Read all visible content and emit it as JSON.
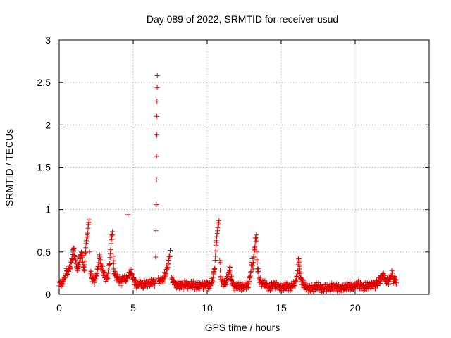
{
  "chart_data": {
    "type": "scatter",
    "title": "Day 089 of 2022, SRMTID for receiver usud",
    "xlabel": "GPS time / hours",
    "ylabel": "SRMTID / TECUs",
    "xlim": [
      0,
      25
    ],
    "ylim": [
      0,
      3
    ],
    "x_ticks": [
      0,
      5,
      10,
      15,
      20
    ],
    "x_tick_labels": [
      "0",
      "5",
      "10",
      "15",
      "20"
    ],
    "y_ticks": [
      0,
      0.5,
      1,
      1.5,
      2,
      2.5,
      3
    ],
    "y_tick_labels": [
      "0",
      "0.5",
      "1",
      "1.5",
      "2",
      "2.5",
      "3"
    ],
    "grid": true,
    "marker": "+",
    "series_color": "#e00000",
    "series": [
      {
        "name": "SRMTID",
        "points": [
          [
            0.0,
            0.1
          ],
          [
            0.05,
            0.12
          ],
          [
            0.1,
            0.15
          ],
          [
            0.15,
            0.1
          ],
          [
            0.2,
            0.13
          ],
          [
            0.25,
            0.18
          ],
          [
            0.3,
            0.15
          ],
          [
            0.35,
            0.2
          ],
          [
            0.4,
            0.22
          ],
          [
            0.45,
            0.25
          ],
          [
            0.5,
            0.28
          ],
          [
            0.55,
            0.24
          ],
          [
            0.6,
            0.3
          ],
          [
            0.65,
            0.27
          ],
          [
            0.7,
            0.33
          ],
          [
            0.75,
            0.3
          ],
          [
            0.8,
            0.38
          ],
          [
            0.85,
            0.42
          ],
          [
            0.9,
            0.47
          ],
          [
            0.95,
            0.5
          ],
          [
            1.0,
            0.54
          ],
          [
            1.05,
            0.45
          ],
          [
            1.1,
            0.4
          ],
          [
            1.15,
            0.36
          ],
          [
            1.2,
            0.3
          ],
          [
            1.25,
            0.28
          ],
          [
            1.3,
            0.35
          ],
          [
            1.35,
            0.38
          ],
          [
            1.4,
            0.42
          ],
          [
            1.45,
            0.46
          ],
          [
            1.5,
            0.5
          ],
          [
            1.55,
            0.44
          ],
          [
            1.6,
            0.38
          ],
          [
            1.65,
            0.32
          ],
          [
            1.7,
            0.28
          ],
          [
            1.75,
            0.48
          ],
          [
            1.8,
            0.55
          ],
          [
            1.85,
            0.62
          ],
          [
            1.9,
            0.7
          ],
          [
            1.95,
            0.78
          ],
          [
            2.0,
            0.85
          ],
          [
            2.02,
            0.88
          ],
          [
            2.05,
            0.5
          ],
          [
            2.1,
            0.25
          ],
          [
            2.2,
            0.2
          ],
          [
            2.3,
            0.18
          ],
          [
            2.4,
            0.16
          ],
          [
            2.5,
            0.22
          ],
          [
            2.6,
            0.3
          ],
          [
            2.7,
            0.42
          ],
          [
            2.75,
            0.44
          ],
          [
            2.8,
            0.36
          ],
          [
            2.9,
            0.3
          ],
          [
            3.0,
            0.25
          ],
          [
            3.1,
            0.2
          ],
          [
            3.2,
            0.18
          ],
          [
            3.3,
            0.25
          ],
          [
            3.4,
            0.35
          ],
          [
            3.45,
            0.48
          ],
          [
            3.5,
            0.6
          ],
          [
            3.55,
            0.68
          ],
          [
            3.6,
            0.74
          ],
          [
            3.65,
            0.45
          ],
          [
            3.7,
            0.3
          ],
          [
            3.8,
            0.22
          ],
          [
            3.9,
            0.2
          ],
          [
            4.0,
            0.18
          ],
          [
            4.1,
            0.16
          ],
          [
            4.2,
            0.15
          ],
          [
            4.3,
            0.18
          ],
          [
            4.4,
            0.2
          ],
          [
            4.5,
            0.15
          ],
          [
            4.6,
            0.2
          ],
          [
            4.65,
            0.94
          ],
          [
            4.7,
            0.22
          ],
          [
            4.8,
            0.25
          ],
          [
            4.9,
            0.24
          ],
          [
            5.0,
            0.2
          ],
          [
            5.1,
            0.15
          ],
          [
            5.2,
            0.12
          ],
          [
            5.3,
            0.1
          ],
          [
            5.4,
            0.12
          ],
          [
            5.5,
            0.15
          ],
          [
            5.6,
            0.12
          ],
          [
            5.7,
            0.1
          ],
          [
            5.8,
            0.12
          ],
          [
            5.9,
            0.15
          ],
          [
            6.0,
            0.12
          ],
          [
            6.1,
            0.14
          ],
          [
            6.2,
            0.13
          ],
          [
            6.3,
            0.15
          ],
          [
            6.4,
            0.13
          ],
          [
            6.5,
            0.15
          ],
          [
            6.52,
            0.44
          ],
          [
            6.54,
            0.75
          ],
          [
            6.56,
            1.06
          ],
          [
            6.57,
            1.35
          ],
          [
            6.58,
            1.63
          ],
          [
            6.59,
            1.88
          ],
          [
            6.6,
            2.1
          ],
          [
            6.61,
            2.28
          ],
          [
            6.62,
            2.44
          ],
          [
            6.63,
            2.58
          ],
          [
            6.7,
            0.2
          ],
          [
            6.8,
            0.15
          ],
          [
            6.9,
            0.18
          ],
          [
            7.0,
            0.15
          ],
          [
            7.1,
            0.2
          ],
          [
            7.2,
            0.25
          ],
          [
            7.3,
            0.3
          ],
          [
            7.35,
            0.35
          ],
          [
            7.4,
            0.4
          ],
          [
            7.45,
            0.45
          ],
          [
            7.5,
            0.52
          ],
          [
            7.6,
            0.2
          ],
          [
            7.8,
            0.12
          ],
          [
            8.0,
            0.1
          ],
          [
            8.2,
            0.12
          ],
          [
            8.4,
            0.1
          ],
          [
            8.6,
            0.13
          ],
          [
            8.8,
            0.1
          ],
          [
            9.0,
            0.12
          ],
          [
            9.2,
            0.1
          ],
          [
            9.4,
            0.09
          ],
          [
            9.6,
            0.11
          ],
          [
            9.8,
            0.1
          ],
          [
            10.0,
            0.12
          ],
          [
            10.2,
            0.1
          ],
          [
            10.4,
            0.2
          ],
          [
            10.5,
            0.3
          ],
          [
            10.55,
            0.45
          ],
          [
            10.6,
            0.58
          ],
          [
            10.65,
            0.68
          ],
          [
            10.7,
            0.75
          ],
          [
            10.75,
            0.82
          ],
          [
            10.8,
            0.87
          ],
          [
            10.85,
            0.4
          ],
          [
            10.9,
            0.2
          ],
          [
            11.0,
            0.15
          ],
          [
            11.2,
            0.12
          ],
          [
            11.4,
            0.2
          ],
          [
            11.5,
            0.28
          ],
          [
            11.55,
            0.32
          ],
          [
            11.6,
            0.18
          ],
          [
            11.8,
            0.1
          ],
          [
            12.0,
            0.08
          ],
          [
            12.2,
            0.1
          ],
          [
            12.4,
            0.09
          ],
          [
            12.6,
            0.1
          ],
          [
            12.8,
            0.12
          ],
          [
            12.9,
            0.2
          ],
          [
            13.0,
            0.35
          ],
          [
            13.05,
            0.42
          ],
          [
            13.1,
            0.3
          ],
          [
            13.15,
            0.45
          ],
          [
            13.2,
            0.55
          ],
          [
            13.25,
            0.62
          ],
          [
            13.3,
            0.7
          ],
          [
            13.35,
            0.5
          ],
          [
            13.4,
            0.3
          ],
          [
            13.5,
            0.2
          ],
          [
            13.6,
            0.15
          ],
          [
            13.8,
            0.12
          ],
          [
            14.0,
            0.1
          ],
          [
            14.2,
            0.08
          ],
          [
            14.4,
            0.1
          ],
          [
            14.6,
            0.12
          ],
          [
            14.8,
            0.1
          ],
          [
            15.0,
            0.08
          ],
          [
            15.2,
            0.09
          ],
          [
            15.4,
            0.1
          ],
          [
            15.6,
            0.08
          ],
          [
            15.8,
            0.1
          ],
          [
            16.0,
            0.15
          ],
          [
            16.1,
            0.25
          ],
          [
            16.15,
            0.35
          ],
          [
            16.2,
            0.42
          ],
          [
            16.25,
            0.3
          ],
          [
            16.3,
            0.2
          ],
          [
            16.4,
            0.15
          ],
          [
            16.6,
            0.1
          ],
          [
            16.8,
            0.08
          ],
          [
            17.0,
            0.07
          ],
          [
            17.2,
            0.08
          ],
          [
            17.4,
            0.1
          ],
          [
            17.6,
            0.08
          ],
          [
            17.8,
            0.07
          ],
          [
            18.0,
            0.08
          ],
          [
            18.2,
            0.07
          ],
          [
            18.4,
            0.08
          ],
          [
            18.6,
            0.09
          ],
          [
            18.8,
            0.08
          ],
          [
            19.0,
            0.07
          ],
          [
            19.2,
            0.08
          ],
          [
            19.4,
            0.09
          ],
          [
            19.6,
            0.1
          ],
          [
            19.8,
            0.08
          ],
          [
            20.0,
            0.1
          ],
          [
            20.2,
            0.12
          ],
          [
            20.4,
            0.1
          ],
          [
            20.6,
            0.08
          ],
          [
            20.8,
            0.1
          ],
          [
            21.0,
            0.12
          ],
          [
            21.2,
            0.1
          ],
          [
            21.4,
            0.12
          ],
          [
            21.6,
            0.15
          ],
          [
            21.8,
            0.2
          ],
          [
            21.9,
            0.25
          ],
          [
            22.0,
            0.18
          ],
          [
            22.2,
            0.15
          ],
          [
            22.4,
            0.2
          ],
          [
            22.5,
            0.25
          ],
          [
            22.6,
            0.15
          ],
          [
            22.7,
            0.2
          ],
          [
            22.8,
            0.12
          ]
        ]
      }
    ]
  }
}
